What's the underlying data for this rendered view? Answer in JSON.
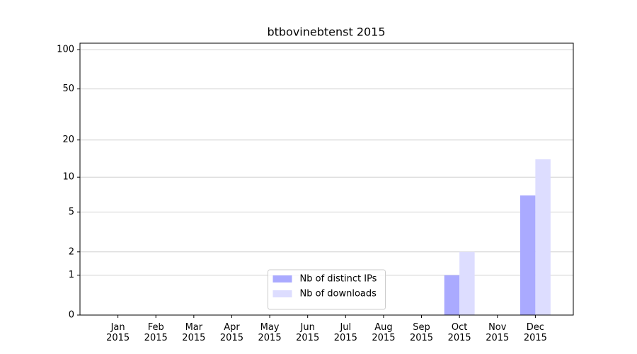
{
  "chart_data": {
    "type": "bar",
    "title": "btbovinebtenst 2015",
    "categories": [
      "Jan 2015",
      "Feb 2015",
      "Mar 2015",
      "Apr 2015",
      "May 2015",
      "Jun 2015",
      "Jul 2015",
      "Aug 2015",
      "Sep 2015",
      "Oct 2015",
      "Nov 2015",
      "Dec 2015"
    ],
    "series": [
      {
        "name": "Nb of distinct IPs",
        "color": "#aaaaff",
        "values": [
          0,
          0,
          0,
          0,
          0,
          0,
          0,
          0,
          0,
          1,
          0,
          7
        ]
      },
      {
        "name": "Nb of downloads",
        "color": "#ddddff",
        "values": [
          0,
          0,
          0,
          0,
          0,
          0,
          0,
          0,
          0,
          2,
          0,
          14
        ]
      }
    ],
    "yscale": "log1p",
    "ylim": [
      0,
      112
    ],
    "yticks": [
      0,
      1,
      2,
      5,
      10,
      20,
      50,
      100
    ],
    "grid": true,
    "legend": "lower center"
  }
}
